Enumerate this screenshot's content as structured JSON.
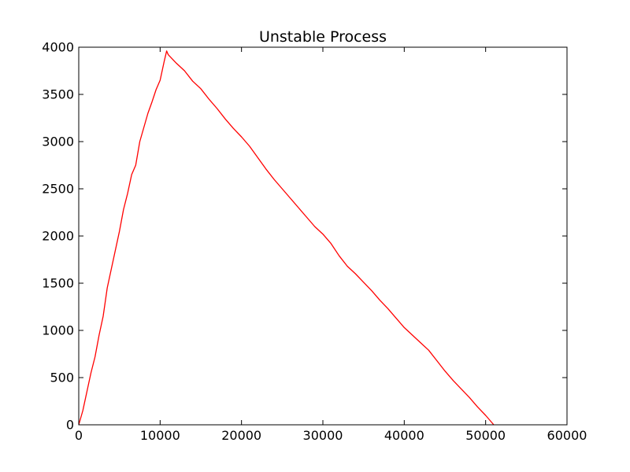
{
  "chart_data": {
    "type": "line",
    "title": "Unstable Process",
    "xlabel": "",
    "ylabel": "",
    "xlim": [
      0,
      60000
    ],
    "ylim": [
      0,
      4000
    ],
    "x_ticks": [
      0,
      10000,
      20000,
      30000,
      40000,
      50000,
      60000
    ],
    "y_ticks": [
      0,
      500,
      1000,
      1500,
      2000,
      2500,
      3000,
      3500,
      4000
    ],
    "x_tick_labels": [
      "0",
      "10000",
      "20000",
      "30000",
      "40000",
      "50000",
      "60000"
    ],
    "y_tick_labels": [
      "0",
      "500",
      "1000",
      "1500",
      "2000",
      "2500",
      "3000",
      "3500",
      "4000"
    ],
    "grid": false,
    "legend": "none",
    "series": [
      {
        "color": "#ff0000",
        "x": [
          0,
          500,
          1000,
          1500,
          2000,
          2500,
          3000,
          3500,
          4000,
          4500,
          5000,
          5500,
          6000,
          6500,
          7000,
          7500,
          8000,
          8500,
          9000,
          9500,
          10000,
          10500,
          10800,
          11000,
          12000,
          13000,
          14000,
          15000,
          16000,
          17000,
          18000,
          19000,
          20000,
          21000,
          22000,
          23000,
          24000,
          25000,
          26000,
          27000,
          28000,
          29000,
          30000,
          31000,
          32000,
          33000,
          34000,
          35000,
          36000,
          37000,
          38000,
          39000,
          40000,
          41000,
          42000,
          43000,
          44000,
          45000,
          46000,
          47000,
          48000,
          49000,
          50000,
          51000
        ],
        "y": [
          0,
          150,
          350,
          550,
          720,
          950,
          1150,
          1450,
          1650,
          1850,
          2050,
          2280,
          2450,
          2650,
          2750,
          3000,
          3150,
          3300,
          3420,
          3550,
          3650,
          3850,
          3960,
          3920,
          3830,
          3750,
          3640,
          3560,
          3450,
          3350,
          3240,
          3140,
          3050,
          2950,
          2830,
          2710,
          2600,
          2500,
          2400,
          2300,
          2200,
          2100,
          2020,
          1920,
          1790,
          1680,
          1600,
          1510,
          1420,
          1320,
          1230,
          1130,
          1030,
          950,
          870,
          790,
          680,
          570,
          470,
          380,
          290,
          190,
          100,
          0
        ]
      }
    ]
  }
}
